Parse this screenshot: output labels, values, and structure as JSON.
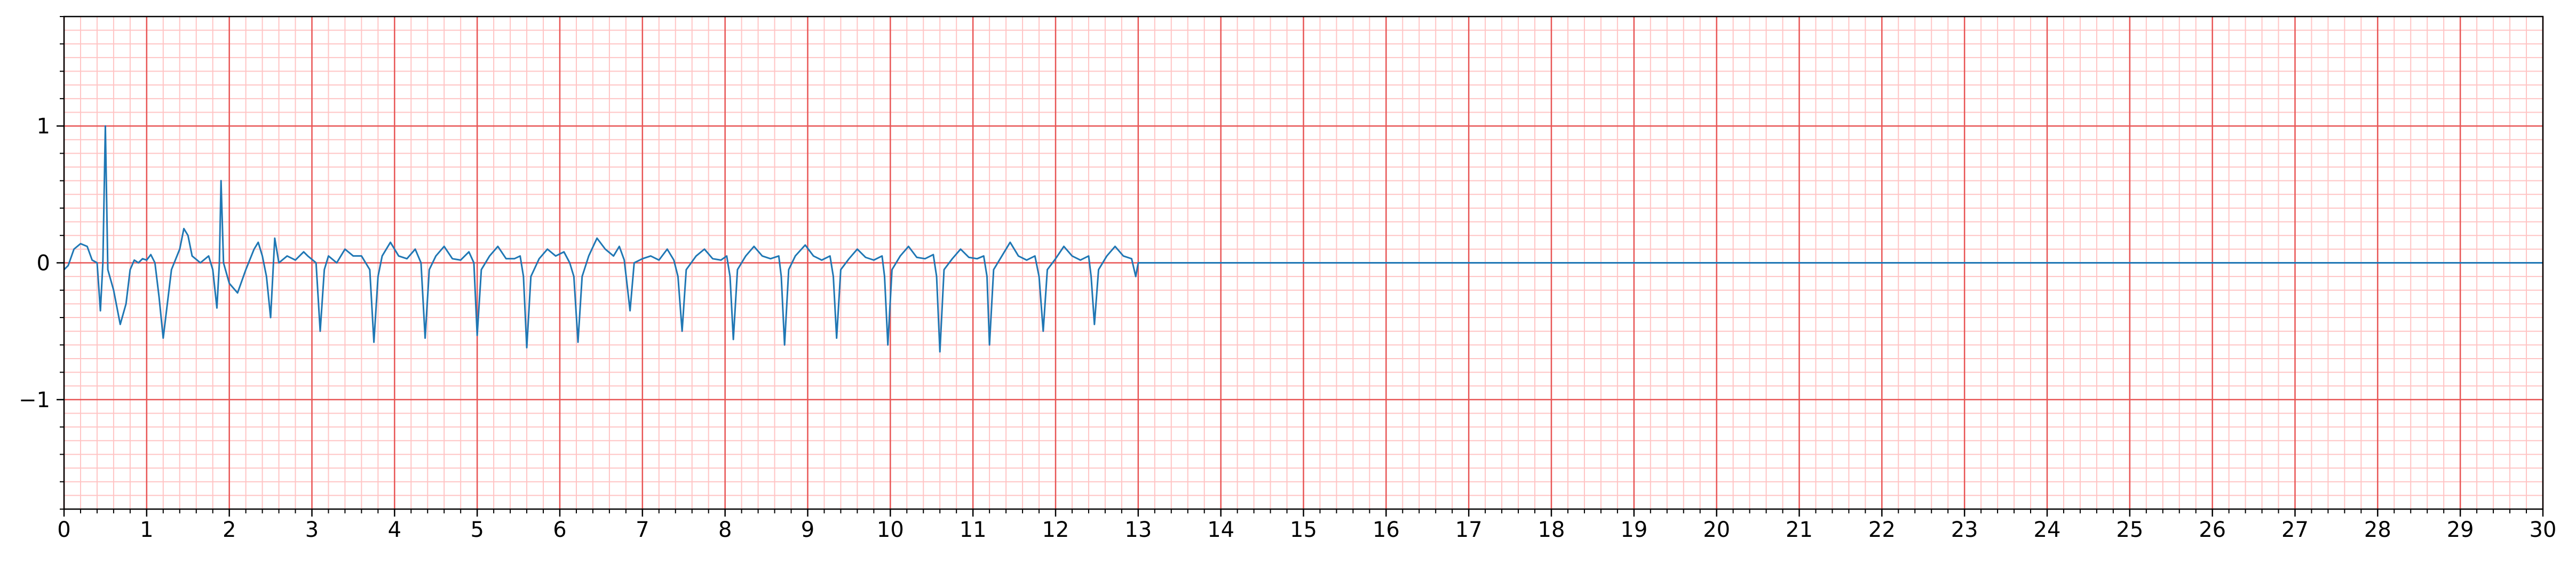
{
  "chart_data": {
    "type": "line",
    "color": "#1f77b4",
    "grid": true,
    "xlim": [
      0,
      30
    ],
    "ylim": [
      -1.8,
      1.8
    ],
    "xticks": [
      0,
      1,
      2,
      3,
      4,
      5,
      6,
      7,
      8,
      9,
      10,
      11,
      12,
      13,
      14,
      15,
      16,
      17,
      18,
      19,
      20,
      21,
      22,
      23,
      24,
      25,
      26,
      27,
      28,
      29,
      30
    ],
    "yticks": [
      {
        "value": -1,
        "label": "−1"
      },
      0,
      1
    ],
    "x": [
      0,
      0.05,
      0.12,
      0.2,
      0.28,
      0.34,
      0.4,
      0.44,
      0.47,
      0.5,
      0.53,
      0.6,
      0.68,
      0.75,
      0.8,
      0.85,
      0.9,
      0.95,
      1.0,
      1.05,
      1.1,
      1.15,
      1.2,
      1.25,
      1.3,
      1.4,
      1.45,
      1.5,
      1.55,
      1.65,
      1.75,
      1.8,
      1.85,
      1.88,
      1.9,
      1.93,
      2.0,
      2.1,
      2.2,
      2.3,
      2.35,
      2.4,
      2.45,
      2.5,
      2.55,
      2.6,
      2.7,
      2.8,
      2.9,
      2.95,
      3.05,
      3.1,
      3.15,
      3.2,
      3.3,
      3.4,
      3.5,
      3.6,
      3.7,
      3.75,
      3.8,
      3.85,
      3.95,
      4.05,
      4.15,
      4.25,
      4.32,
      4.37,
      4.42,
      4.5,
      4.6,
      4.7,
      4.8,
      4.9,
      4.96,
      5.0,
      5.05,
      5.15,
      5.25,
      5.35,
      5.45,
      5.52,
      5.56,
      5.6,
      5.65,
      5.75,
      5.85,
      5.95,
      6.05,
      6.12,
      6.17,
      6.22,
      6.27,
      6.35,
      6.45,
      6.55,
      6.65,
      6.72,
      6.78,
      6.85,
      6.9,
      7.0,
      7.1,
      7.2,
      7.3,
      7.38,
      7.43,
      7.48,
      7.53,
      7.65,
      7.75,
      7.85,
      7.95,
      8.02,
      8.06,
      8.1,
      8.15,
      8.25,
      8.35,
      8.45,
      8.55,
      8.65,
      8.68,
      8.72,
      8.77,
      8.85,
      8.97,
      9.07,
      9.17,
      9.27,
      9.31,
      9.35,
      9.4,
      9.5,
      9.6,
      9.7,
      9.8,
      9.9,
      9.93,
      9.97,
      10.02,
      10.12,
      10.22,
      10.32,
      10.42,
      10.52,
      10.56,
      10.6,
      10.65,
      10.75,
      10.85,
      10.95,
      11.05,
      11.13,
      11.17,
      11.2,
      11.25,
      11.35,
      11.45,
      11.55,
      11.65,
      11.75,
      11.8,
      11.85,
      11.9,
      12.0,
      12.1,
      12.2,
      12.3,
      12.4,
      12.43,
      12.47,
      12.52,
      12.62,
      12.72,
      12.82,
      12.92,
      12.97,
      13.0,
      30.0
    ],
    "values": [
      -0.05,
      -0.02,
      0.1,
      0.14,
      0.12,
      0.02,
      0.0,
      -0.35,
      0.0,
      1.0,
      -0.05,
      -0.2,
      -0.45,
      -0.3,
      -0.05,
      0.02,
      0.0,
      0.03,
      0.02,
      0.06,
      0.0,
      -0.25,
      -0.55,
      -0.3,
      -0.05,
      0.1,
      0.25,
      0.2,
      0.05,
      0.0,
      0.05,
      -0.05,
      -0.33,
      0.0,
      0.6,
      0.0,
      -0.15,
      -0.22,
      -0.05,
      0.1,
      0.15,
      0.05,
      -0.1,
      -0.4,
      0.18,
      0.0,
      0.05,
      0.02,
      0.08,
      0.05,
      0.0,
      -0.5,
      -0.05,
      0.05,
      0.0,
      0.1,
      0.05,
      0.05,
      -0.05,
      -0.58,
      -0.1,
      0.05,
      0.15,
      0.05,
      0.03,
      0.1,
      0.0,
      -0.55,
      -0.05,
      0.05,
      0.12,
      0.03,
      0.02,
      0.08,
      0.0,
      -0.53,
      -0.05,
      0.05,
      0.12,
      0.03,
      0.03,
      0.05,
      -0.1,
      -0.62,
      -0.1,
      0.03,
      0.1,
      0.05,
      0.08,
      0.0,
      -0.1,
      -0.58,
      -0.1,
      0.05,
      0.18,
      0.1,
      0.05,
      0.12,
      0.02,
      -0.35,
      0.0,
      0.03,
      0.05,
      0.02,
      0.1,
      0.02,
      -0.1,
      -0.5,
      -0.05,
      0.05,
      0.1,
      0.03,
      0.02,
      0.05,
      -0.1,
      -0.56,
      -0.05,
      0.05,
      0.12,
      0.05,
      0.03,
      0.05,
      -0.1,
      -0.6,
      -0.05,
      0.05,
      0.13,
      0.05,
      0.02,
      0.05,
      -0.1,
      -0.55,
      -0.05,
      0.03,
      0.1,
      0.04,
      0.02,
      0.05,
      -0.1,
      -0.6,
      -0.05,
      0.05,
      0.12,
      0.04,
      0.03,
      0.06,
      -0.1,
      -0.65,
      -0.05,
      0.03,
      0.1,
      0.04,
      0.03,
      0.05,
      -0.1,
      -0.6,
      -0.05,
      0.05,
      0.15,
      0.05,
      0.02,
      0.05,
      -0.1,
      -0.5,
      -0.05,
      0.03,
      0.12,
      0.05,
      0.02,
      0.05,
      -0.1,
      -0.45,
      -0.05,
      0.05,
      0.12,
      0.05,
      0.03,
      -0.1,
      0.0,
      0.0
    ]
  }
}
